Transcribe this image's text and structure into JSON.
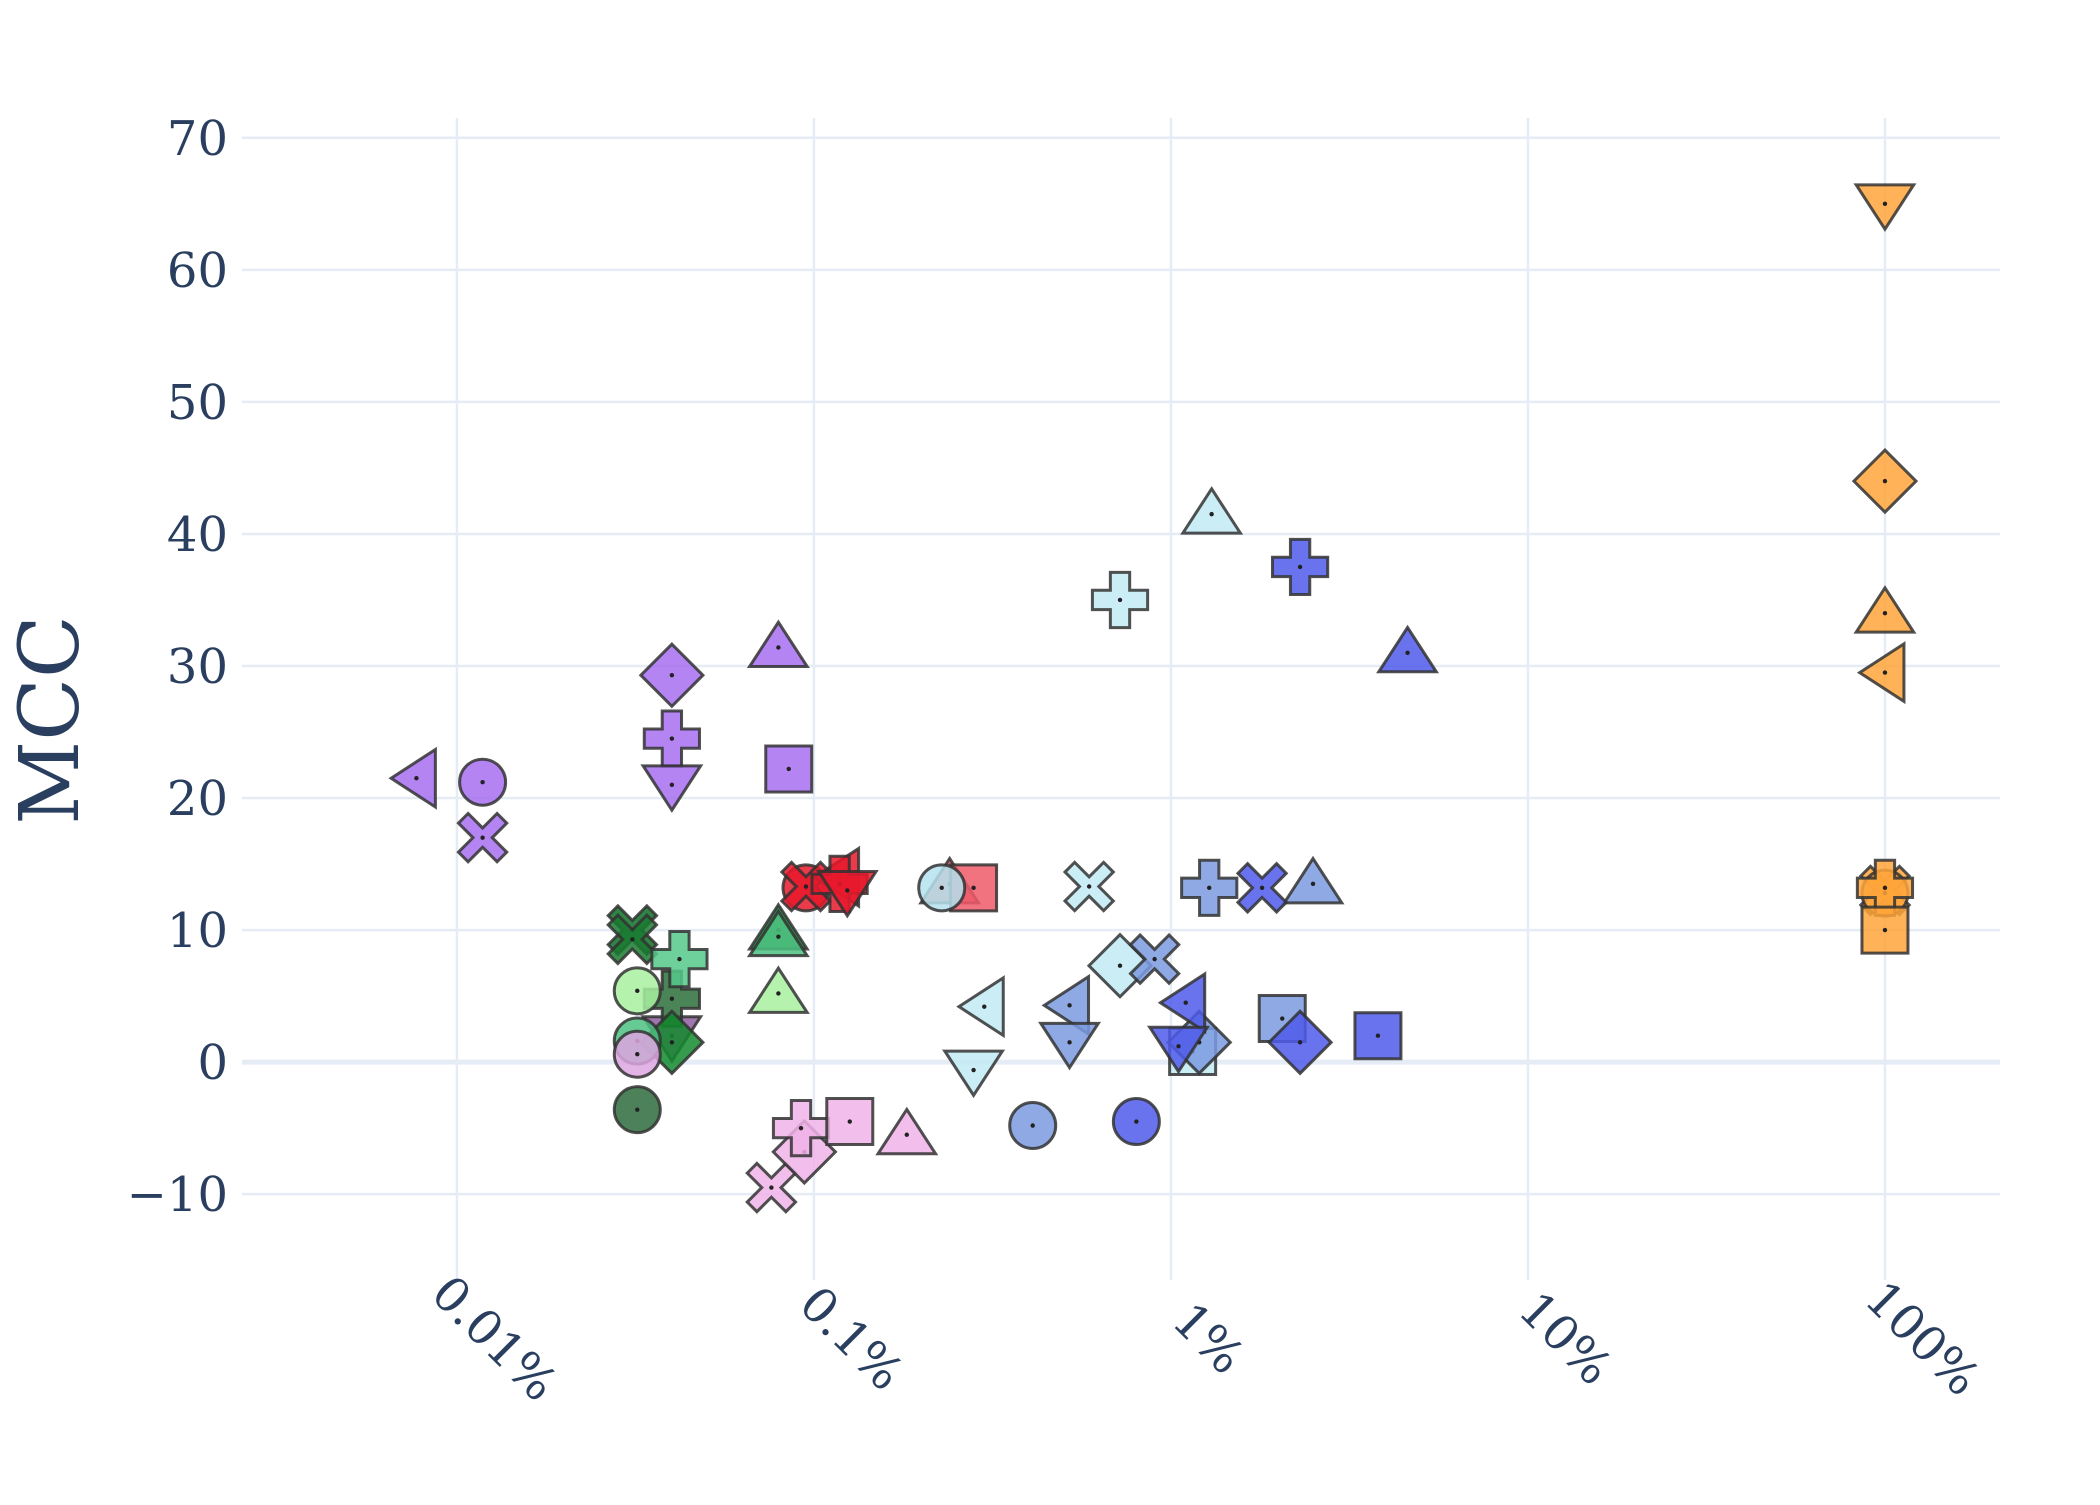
{
  "chart_data": {
    "type": "scatter",
    "ylabel": "MCC",
    "xlabel": "",
    "xscale": "log",
    "xlim": [
      0.0025,
      210
    ],
    "ylim": [
      -16.5,
      71.5
    ],
    "xticks": [
      {
        "value": 0.01,
        "label": "0.01%"
      },
      {
        "value": 0.1,
        "label": "0.1%"
      },
      {
        "value": 1,
        "label": "1%"
      },
      {
        "value": 10,
        "label": "10%"
      },
      {
        "value": 100,
        "label": "100%"
      }
    ],
    "yticks": [
      {
        "value": 70,
        "label": "70"
      },
      {
        "value": 60,
        "label": "60"
      },
      {
        "value": 50,
        "label": "50"
      },
      {
        "value": 40,
        "label": "40"
      },
      {
        "value": 30,
        "label": "30"
      },
      {
        "value": 20,
        "label": "20"
      },
      {
        "value": 10,
        "label": "10"
      },
      {
        "value": 0,
        "label": "0"
      },
      {
        "value": -10,
        "label": "−10"
      }
    ],
    "grid": true,
    "points": [
      {
        "x": 0.0077,
        "y": 21.5,
        "symbol": "triangle-left",
        "color": "#a66ff0"
      },
      {
        "x": 0.0118,
        "y": 21.2,
        "symbol": "circle",
        "color": "#a66ff0"
      },
      {
        "x": 0.0118,
        "y": 17.0,
        "symbol": "x",
        "color": "#a66ff0"
      },
      {
        "x": 0.04,
        "y": 29.3,
        "symbol": "diamond",
        "color": "#a66ff0"
      },
      {
        "x": 0.04,
        "y": 24.5,
        "symbol": "cross",
        "color": "#a66ff0"
      },
      {
        "x": 0.04,
        "y": 21.0,
        "symbol": "triangle-down",
        "color": "#a66ff0"
      },
      {
        "x": 0.085,
        "y": 22.2,
        "symbol": "square",
        "color": "#a66ff0"
      },
      {
        "x": 0.04,
        "y": 2.0,
        "symbol": "triangle-down",
        "color": "#8e5ea0"
      },
      {
        "x": 0.0795,
        "y": 31.4,
        "symbol": "triangle-up",
        "color": "#a66ff0"
      },
      {
        "x": 0.031,
        "y": 10.0,
        "symbol": "x",
        "color": "#0d6e26"
      },
      {
        "x": 0.031,
        "y": 9.3,
        "symbol": "x",
        "color": "#1a7a30"
      },
      {
        "x": 0.032,
        "y": -3.6,
        "symbol": "circle",
        "color": "#2e6b3c"
      },
      {
        "x": 0.04,
        "y": 4.8,
        "symbol": "cross",
        "color": "#2a6e3a"
      },
      {
        "x": 0.04,
        "y": 1.5,
        "symbol": "diamond",
        "color": "#138a2d"
      },
      {
        "x": 0.042,
        "y": 7.8,
        "symbol": "cross",
        "color": "#55c989"
      },
      {
        "x": 0.032,
        "y": 1.6,
        "symbol": "circle",
        "color": "#4cc080"
      },
      {
        "x": 0.032,
        "y": 5.4,
        "symbol": "circle",
        "color": "#a8f0a0"
      },
      {
        "x": 0.0795,
        "y": 10.0,
        "symbol": "triangle-up",
        "color": "#188a3a"
      },
      {
        "x": 0.0795,
        "y": 9.5,
        "symbol": "triangle-up",
        "color": "#4cc080"
      },
      {
        "x": 0.0795,
        "y": 5.2,
        "symbol": "triangle-up",
        "color": "#a8f0a0"
      },
      {
        "x": 0.032,
        "y": 0.6,
        "symbol": "circle",
        "color": "#dda6e0"
      },
      {
        "x": 0.076,
        "y": -9.5,
        "symbol": "x",
        "color": "#f0b3e8"
      },
      {
        "x": 0.094,
        "y": -6.8,
        "symbol": "diamond",
        "color": "#f0b3e8"
      },
      {
        "x": 0.092,
        "y": -5.0,
        "symbol": "cross",
        "color": "#f0b3e8"
      },
      {
        "x": 0.126,
        "y": -4.5,
        "symbol": "square",
        "color": "#f0b3e8"
      },
      {
        "x": 0.182,
        "y": -5.5,
        "symbol": "triangle-up",
        "color": "#f0b3e8"
      },
      {
        "x": 0.095,
        "y": 13.2,
        "symbol": "circle",
        "color": "#e8192c"
      },
      {
        "x": 0.095,
        "y": 13.3,
        "symbol": "x",
        "color": "#e8192c"
      },
      {
        "x": 0.118,
        "y": 14.0,
        "symbol": "triangle-left",
        "color": "#e8192c"
      },
      {
        "x": 0.118,
        "y": 13.5,
        "symbol": "cross",
        "color": "#e8192c"
      },
      {
        "x": 0.124,
        "y": 13.0,
        "symbol": "triangle-down",
        "color": "#e8192c"
      },
      {
        "x": 0.24,
        "y": 13.5,
        "symbol": "triangle-up",
        "color": "#f05a6a"
      },
      {
        "x": 0.28,
        "y": 13.2,
        "symbol": "square",
        "color": "#f05a6a"
      },
      {
        "x": 0.228,
        "y": 13.2,
        "symbol": "circle",
        "color": "#b5e3ee"
      },
      {
        "x": 0.3,
        "y": 4.2,
        "symbol": "triangle-left",
        "color": "#c2eaf5"
      },
      {
        "x": 0.28,
        "y": -0.6,
        "symbol": "triangle-down",
        "color": "#c2eaf5"
      },
      {
        "x": 0.59,
        "y": 13.3,
        "symbol": "x",
        "color": "#c2eaf5"
      },
      {
        "x": 0.72,
        "y": 35.0,
        "symbol": "cross",
        "color": "#c2eaf5"
      },
      {
        "x": 0.72,
        "y": 7.3,
        "symbol": "diamond",
        "color": "#c2eaf5"
      },
      {
        "x": 1.3,
        "y": 41.5,
        "symbol": "triangle-up",
        "color": "#c2eaf5"
      },
      {
        "x": 1.15,
        "y": 0.8,
        "symbol": "square",
        "color": "#c2eaf5"
      },
      {
        "x": 0.52,
        "y": 4.3,
        "symbol": "triangle-left",
        "color": "#7b9ae0"
      },
      {
        "x": 0.52,
        "y": 1.5,
        "symbol": "triangle-down",
        "color": "#7b9ae0"
      },
      {
        "x": 0.41,
        "y": -4.8,
        "symbol": "circle",
        "color": "#7b9ae0"
      },
      {
        "x": 0.9,
        "y": 7.8,
        "symbol": "x",
        "color": "#7b9ae0"
      },
      {
        "x": 1.2,
        "y": 1.5,
        "symbol": "diamond",
        "color": "#7b9ae0"
      },
      {
        "x": 1.28,
        "y": 13.2,
        "symbol": "cross",
        "color": "#7b9ae0"
      },
      {
        "x": 2.5,
        "y": 13.5,
        "symbol": "triangle-up",
        "color": "#7b9ae0"
      },
      {
        "x": 2.05,
        "y": 3.3,
        "symbol": "square",
        "color": "#7b9ae0"
      },
      {
        "x": 0.8,
        "y": -4.5,
        "symbol": "circle",
        "color": "#4f5bea"
      },
      {
        "x": 1.1,
        "y": 4.5,
        "symbol": "triangle-left",
        "color": "#4f5bea"
      },
      {
        "x": 1.05,
        "y": 1.2,
        "symbol": "triangle-down",
        "color": "#4f5bea"
      },
      {
        "x": 1.8,
        "y": 13.2,
        "symbol": "x",
        "color": "#4f5bea"
      },
      {
        "x": 2.3,
        "y": 37.5,
        "symbol": "cross",
        "color": "#4f5bea"
      },
      {
        "x": 2.3,
        "y": 1.5,
        "symbol": "diamond",
        "color": "#4f5bea"
      },
      {
        "x": 4.6,
        "y": 31.0,
        "symbol": "triangle-up",
        "color": "#4f5bea"
      },
      {
        "x": 3.8,
        "y": 2.0,
        "symbol": "square",
        "color": "#4f5bea"
      },
      {
        "x": 100,
        "y": 65.0,
        "symbol": "triangle-down",
        "color": "#ffa53a"
      },
      {
        "x": 100,
        "y": 44.0,
        "symbol": "diamond",
        "color": "#ffa53a"
      },
      {
        "x": 100,
        "y": 34.0,
        "symbol": "triangle-up",
        "color": "#ffa53a"
      },
      {
        "x": 100,
        "y": 29.5,
        "symbol": "triangle-left",
        "color": "#ffa53a"
      },
      {
        "x": 100,
        "y": 13.0,
        "symbol": "x",
        "color": "#ffa53a"
      },
      {
        "x": 100,
        "y": 12.8,
        "symbol": "circle",
        "color": "#ffa53a"
      },
      {
        "x": 100,
        "y": 13.2,
        "symbol": "cross",
        "color": "#ffa53a"
      },
      {
        "x": 100,
        "y": 10.0,
        "symbol": "square",
        "color": "#ffa53a"
      }
    ]
  }
}
